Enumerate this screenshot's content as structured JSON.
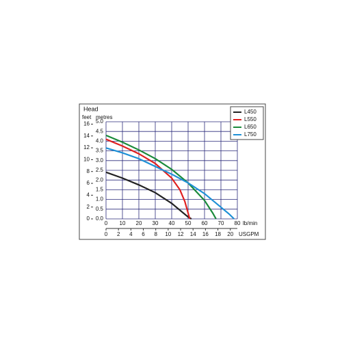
{
  "chart_data": {
    "type": "line",
    "title": "Head",
    "y_label_left": "feet",
    "y_label_right": "metres",
    "x_label": "lb/min",
    "x2_label": "USGPM",
    "xlim": [
      0,
      80
    ],
    "xticks": [
      0,
      10,
      20,
      30,
      40,
      50,
      60,
      70,
      80
    ],
    "ylim": [
      0,
      5
    ],
    "yticks": [
      {
        "value": 0,
        "label": "0.0"
      },
      {
        "value": 0.5,
        "label": "0.5"
      },
      {
        "value": 1,
        "label": "1.0"
      },
      {
        "value": 1.5,
        "label": "1.5"
      },
      {
        "value": 2,
        "label": "2.0"
      },
      {
        "value": 2.5,
        "label": "2.5"
      },
      {
        "value": 3,
        "label": "3.0"
      },
      {
        "value": 3.5,
        "label": "3.5"
      },
      {
        "value": 4,
        "label": "4.0"
      },
      {
        "value": 4.5,
        "label": "4.5"
      },
      {
        "value": 5,
        "label": "5.0"
      }
    ],
    "y2lim": [
      0,
      16.4
    ],
    "y2ticks": [
      0,
      2,
      4,
      6,
      8,
      10,
      12,
      14,
      16
    ],
    "x2lim": [
      0,
      21.13
    ],
    "x2ticks": [
      0,
      2,
      4,
      6,
      8,
      10,
      12,
      14,
      16,
      18,
      20
    ],
    "grid": true,
    "legend": "top-right",
    "series": [
      {
        "name": "L450",
        "color": "#222222",
        "x": [
          0,
          10,
          20,
          30,
          40,
          45,
          50,
          52
        ],
        "values": [
          2.4,
          2.1,
          1.75,
          1.35,
          0.8,
          0.45,
          0.1,
          0
        ]
      },
      {
        "name": "L550",
        "color": "#e02020",
        "x": [
          0,
          10,
          20,
          30,
          40,
          45,
          48,
          50,
          51
        ],
        "values": [
          4.1,
          3.75,
          3.35,
          2.85,
          2.1,
          1.5,
          0.9,
          0.3,
          0
        ]
      },
      {
        "name": "L650",
        "color": "#1a8a3a",
        "x": [
          0,
          10,
          20,
          30,
          40,
          50,
          60,
          65,
          67
        ],
        "values": [
          4.3,
          3.95,
          3.55,
          3.1,
          2.55,
          1.85,
          0.95,
          0.3,
          0
        ]
      },
      {
        "name": "L750",
        "color": "#1e90d6",
        "x": [
          0,
          10,
          20,
          30,
          40,
          50,
          60,
          70,
          75,
          78
        ],
        "values": [
          3.65,
          3.4,
          3.1,
          2.7,
          2.3,
          1.85,
          1.3,
          0.6,
          0.25,
          0
        ]
      }
    ]
  }
}
